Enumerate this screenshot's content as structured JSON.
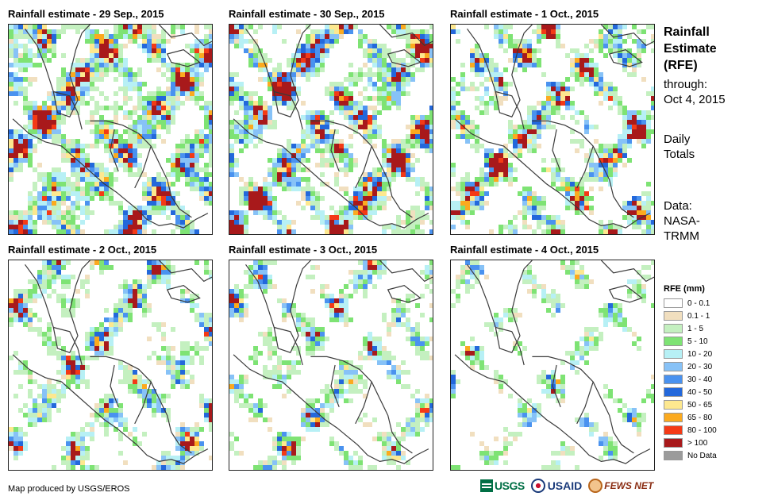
{
  "panels": [
    {
      "title": "Rainfall estimate - 29 Sep., 2015",
      "seed": 29,
      "wet": 0.62,
      "intensity": 0.78
    },
    {
      "title": "Rainfall estimate - 30 Sep., 2015",
      "seed": 30,
      "wet": 0.55,
      "intensity": 0.8
    },
    {
      "title": "Rainfall estimate - 1 Oct., 2015",
      "seed": 31,
      "wet": 0.45,
      "intensity": 0.7
    },
    {
      "title": "Rainfall estimate - 2 Oct., 2015",
      "seed": 32,
      "wet": 0.4,
      "intensity": 0.55
    },
    {
      "title": "Rainfall estimate - 3 Oct., 2015",
      "seed": 33,
      "wet": 0.35,
      "intensity": 0.45
    },
    {
      "title": "Rainfall estimate - 4 Oct., 2015",
      "seed": 34,
      "wet": 0.22,
      "intensity": 0.3
    }
  ],
  "sidebar": {
    "title_line1": "Rainfall",
    "title_line2": "Estimate",
    "title_line3": "(RFE)",
    "through_label": "through:",
    "through_date": "Oct 4, 2015",
    "totals_line1": "Daily",
    "totals_line2": "Totals",
    "data_line1": "Data:",
    "data_line2": "NASA-",
    "data_line3": "TRMM"
  },
  "legend": {
    "title": "RFE (mm)",
    "items": [
      {
        "label": "0 - 0.1",
        "color": "#ffffff"
      },
      {
        "label": "0.1 - 1",
        "color": "#f1dfbf"
      },
      {
        "label": "1 - 5",
        "color": "#c4f0c0"
      },
      {
        "label": "5 - 10",
        "color": "#7ee374"
      },
      {
        "label": "10 - 20",
        "color": "#b7f0f5"
      },
      {
        "label": "20 - 30",
        "color": "#87c2f7"
      },
      {
        "label": "30 - 40",
        "color": "#4a92ef"
      },
      {
        "label": "40 - 50",
        "color": "#2368db"
      },
      {
        "label": "50 - 65",
        "color": "#fde88f"
      },
      {
        "label": "65 - 80",
        "color": "#fbaa1f"
      },
      {
        "label": "80 - 100",
        "color": "#f43a16"
      },
      {
        "label": "> 100",
        "color": "#a8191b"
      },
      {
        "label": "No Data",
        "color": "#9b9b9b"
      }
    ]
  },
  "footer": {
    "credit": "Map produced by USGS/EROS",
    "logo_usgs": "USGS",
    "logo_usaid": "USAID",
    "logo_fews": "FEWS NET"
  }
}
